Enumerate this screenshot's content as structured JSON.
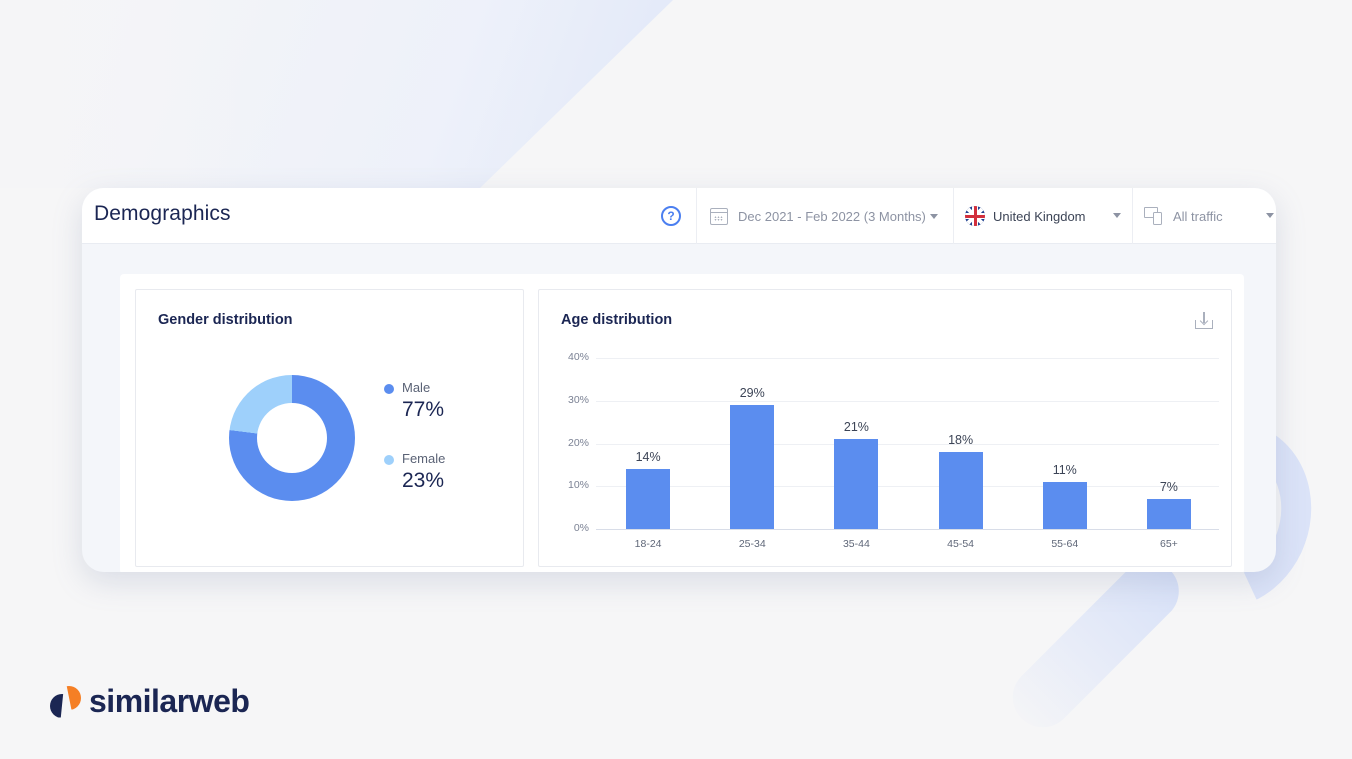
{
  "header": {
    "title": "Demographics",
    "help_icon": "question-circle-icon",
    "date_range": "Dec 2021 - Feb 2022 (3 Months)",
    "country": "United Kingdom",
    "traffic": "All traffic"
  },
  "gender": {
    "title": "Gender distribution",
    "items": [
      {
        "label": "Male",
        "value": "77%",
        "color": "#5b8def"
      },
      {
        "label": "Female",
        "value": "23%",
        "color": "#9ed0fb"
      }
    ]
  },
  "age": {
    "title": "Age distribution",
    "yticks": [
      "40%",
      "30%",
      "20%",
      "10%",
      "0%"
    ],
    "bars": [
      {
        "category": "18-24",
        "label": "14%"
      },
      {
        "category": "25-34",
        "label": "29%"
      },
      {
        "category": "35-44",
        "label": "21%"
      },
      {
        "category": "45-54",
        "label": "18%"
      },
      {
        "category": "55-64",
        "label": "11%"
      },
      {
        "category": "65+",
        "label": "7%"
      }
    ]
  },
  "brand": {
    "logo_text": "similarweb"
  },
  "chart_data": [
    {
      "type": "pie",
      "title": "Gender distribution",
      "categories": [
        "Male",
        "Female"
      ],
      "values": [
        77,
        23
      ],
      "colors": [
        "#5b8def",
        "#9ed0fb"
      ],
      "legend_position": "right"
    },
    {
      "type": "bar",
      "title": "Age distribution",
      "categories": [
        "18-24",
        "25-34",
        "35-44",
        "45-54",
        "55-64",
        "65+"
      ],
      "values": [
        14,
        29,
        21,
        18,
        11,
        7
      ],
      "xlabel": "",
      "ylabel": "",
      "ylim": [
        0,
        40
      ],
      "yticks": [
        "0%",
        "10%",
        "20%",
        "30%",
        "40%"
      ],
      "grid": true,
      "color": "#5b8def"
    }
  ]
}
